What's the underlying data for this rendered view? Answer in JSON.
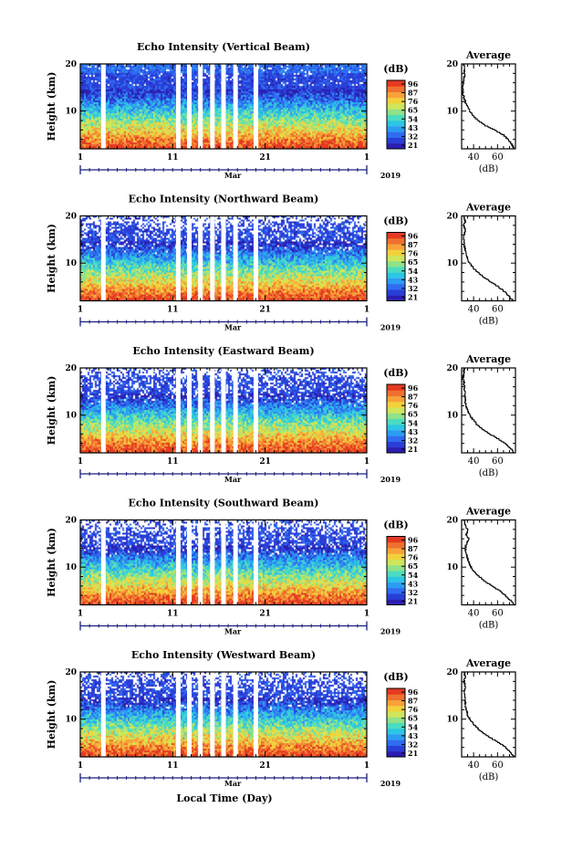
{
  "chart_data": {
    "type": "heatmap",
    "ylabel": "Height (km)",
    "xlabel": "Local Time (Day)",
    "x_ticks": [
      "1",
      "11",
      "21",
      "1"
    ],
    "x_month": "Mar",
    "x_year": "2019",
    "y_ticks": [
      "20",
      "10"
    ],
    "ylim": [
      2,
      20
    ],
    "colorbar": {
      "label": "(dB)",
      "ticks": [
        "96",
        "87",
        "76",
        "65",
        "54",
        "43",
        "32",
        "21"
      ],
      "colors": [
        "#2a1fb0",
        "#2a3fd8",
        "#2f6cf0",
        "#2e9bf2",
        "#2cc6e4",
        "#4cdcc0",
        "#8fe38a",
        "#cfe65a",
        "#f2d23c",
        "#f7a23a",
        "#f0702e",
        "#e43a22"
      ]
    },
    "data_gaps_day_of_month": [
      3.5,
      11.6,
      12.8,
      14.0,
      15.3,
      16.5,
      17.8,
      20.0
    ],
    "panels": [
      {
        "title": "Echo Intensity (Vertical Beam)",
        "average": {
          "title": "Average",
          "xlabel": "(dB)",
          "x_ticks": [
            "40",
            "60"
          ],
          "xlim": [
            30,
            75
          ],
          "y_ticks": [
            "20",
            "10"
          ],
          "profile": [
            [
              74,
              2
            ],
            [
              72,
              3
            ],
            [
              69,
              4
            ],
            [
              65,
              5
            ],
            [
              58,
              6
            ],
            [
              50,
              7
            ],
            [
              44,
              8
            ],
            [
              40,
              9
            ],
            [
              37,
              10
            ],
            [
              35,
              11
            ],
            [
              33,
              12
            ],
            [
              32,
              13
            ],
            [
              31,
              14
            ],
            [
              31,
              16
            ],
            [
              32,
              17
            ],
            [
              33,
              18
            ],
            [
              32,
              19
            ],
            [
              32,
              20
            ]
          ]
        }
      },
      {
        "title": "Echo Intensity (Northward Beam)",
        "average": {
          "title": "Average",
          "xlabel": "(dB)",
          "x_ticks": [
            "40",
            "60"
          ],
          "xlim": [
            30,
            75
          ],
          "y_ticks": [
            "20",
            "10"
          ],
          "profile": [
            [
              73,
              2
            ],
            [
              70,
              3
            ],
            [
              66,
              4
            ],
            [
              61,
              5
            ],
            [
              55,
              6
            ],
            [
              49,
              7
            ],
            [
              44,
              8
            ],
            [
              40,
              9
            ],
            [
              37,
              10
            ],
            [
              35,
              11
            ],
            [
              34,
              12
            ],
            [
              33,
              13
            ],
            [
              32,
              14
            ],
            [
              32,
              16
            ],
            [
              33,
              17
            ],
            [
              32,
              18
            ],
            [
              33,
              19
            ],
            [
              32,
              20
            ]
          ]
        }
      },
      {
        "title": "Echo Intensity (Eastward Beam)",
        "average": {
          "title": "Average",
          "xlabel": "(dB)",
          "x_ticks": [
            "40",
            "60"
          ],
          "xlim": [
            30,
            75
          ],
          "y_ticks": [
            "20",
            "10"
          ],
          "profile": [
            [
              74,
              2
            ],
            [
              71,
              3
            ],
            [
              67,
              4
            ],
            [
              61,
              5
            ],
            [
              54,
              6
            ],
            [
              48,
              7
            ],
            [
              43,
              8
            ],
            [
              40,
              9
            ],
            [
              37,
              10
            ],
            [
              35,
              11
            ],
            [
              34,
              12
            ],
            [
              33,
              13
            ],
            [
              33,
              14
            ],
            [
              32,
              16
            ],
            [
              32,
              17
            ],
            [
              31,
              18
            ],
            [
              32,
              19
            ],
            [
              32,
              20
            ]
          ]
        }
      },
      {
        "title": "Echo Intensity (Southward Beam)",
        "average": {
          "title": "Average",
          "xlabel": "(dB)",
          "x_ticks": [
            "40",
            "60"
          ],
          "xlim": [
            30,
            75
          ],
          "y_ticks": [
            "20",
            "10"
          ],
          "profile": [
            [
              74,
              2
            ],
            [
              71,
              3
            ],
            [
              67,
              4
            ],
            [
              62,
              5
            ],
            [
              56,
              6
            ],
            [
              50,
              7
            ],
            [
              45,
              8
            ],
            [
              41,
              9
            ],
            [
              38,
              10
            ],
            [
              36,
              11
            ],
            [
              35,
              12
            ],
            [
              34,
              13
            ],
            [
              33,
              14
            ],
            [
              34,
              15
            ],
            [
              36,
              16
            ],
            [
              34,
              17
            ],
            [
              35,
              18
            ],
            [
              33,
              19
            ],
            [
              32,
              20
            ]
          ]
        }
      },
      {
        "title": "Echo Intensity (Westward Beam)",
        "average": {
          "title": "Average",
          "xlabel": "(dB)",
          "x_ticks": [
            "40",
            "60"
          ],
          "xlim": [
            30,
            75
          ],
          "y_ticks": [
            "20",
            "10"
          ],
          "profile": [
            [
              74,
              2
            ],
            [
              71,
              3
            ],
            [
              67,
              4
            ],
            [
              62,
              5
            ],
            [
              55,
              6
            ],
            [
              49,
              7
            ],
            [
              44,
              8
            ],
            [
              40,
              9
            ],
            [
              37,
              10
            ],
            [
              35,
              11
            ],
            [
              34,
              12
            ],
            [
              33,
              13
            ],
            [
              33,
              14
            ],
            [
              32,
              16
            ],
            [
              33,
              17
            ],
            [
              32,
              18
            ],
            [
              33,
              19
            ],
            [
              32,
              20
            ]
          ]
        }
      }
    ]
  }
}
